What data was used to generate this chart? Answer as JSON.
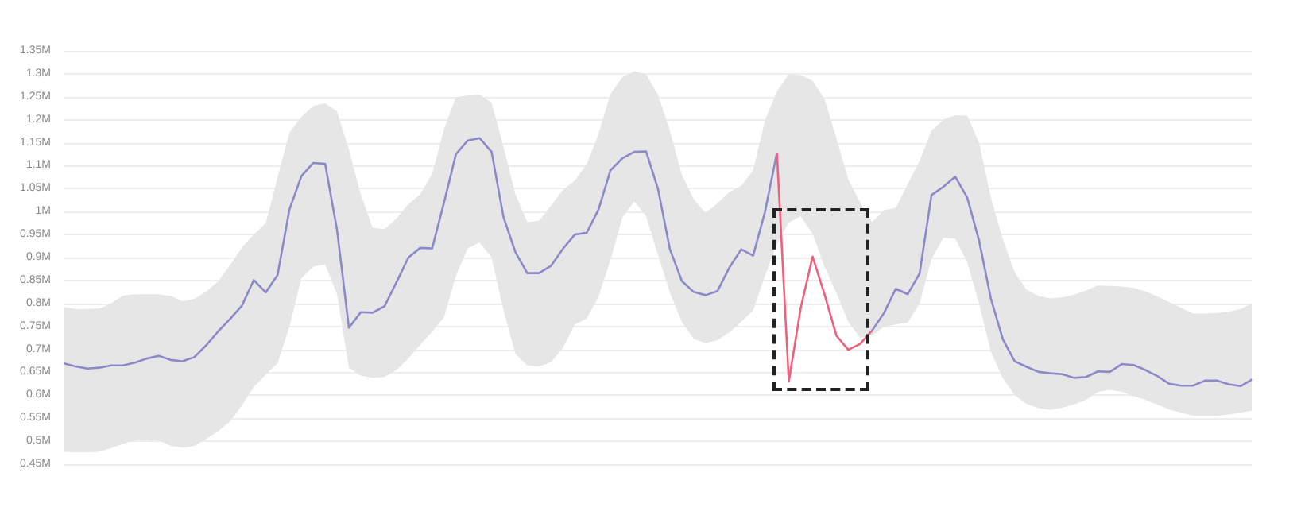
{
  "chart_data": {
    "type": "line",
    "categories": [
      null,
      null,
      null,
      null,
      null,
      null,
      null,
      null,
      null,
      null,
      null,
      null,
      null,
      null,
      null,
      null,
      null,
      null,
      null,
      null,
      null,
      null,
      null,
      null,
      null,
      null,
      null,
      null,
      null,
      null,
      null,
      null,
      null,
      null,
      null,
      null,
      null,
      null,
      null,
      null,
      null,
      null,
      null,
      null,
      null,
      null,
      null,
      null,
      null,
      null,
      null,
      null,
      null,
      null,
      null,
      null,
      null,
      null,
      null,
      null,
      null,
      null,
      null,
      null,
      null,
      null,
      null,
      null,
      null,
      null,
      null,
      null,
      null,
      null,
      null,
      null,
      null,
      null,
      null,
      null,
      null,
      null,
      null,
      null,
      null,
      null,
      null,
      null,
      null,
      null,
      null,
      null,
      null,
      null,
      null,
      null,
      null,
      null,
      null,
      null,
      null
    ],
    "series": [
      {
        "color": "#8c89c9",
        "values": [
          0.67,
          0.663,
          0.658,
          0.66,
          0.665,
          0.665,
          0.671,
          0.68,
          0.686,
          0.677,
          0.674,
          0.683,
          0.709,
          0.739,
          0.766,
          0.795,
          0.851,
          0.824,
          0.862,
          1.005,
          1.077,
          1.106,
          1.104,
          0.96,
          0.747,
          0.781,
          0.78,
          0.794,
          0.846,
          0.9,
          0.921,
          0.92,
          1.02,
          1.125,
          1.155,
          1.16,
          1.13,
          0.988,
          0.912,
          0.866,
          0.866,
          0.882,
          0.919,
          0.95,
          0.954,
          1.005,
          1.09,
          1.116,
          1.13,
          1.131,
          1.049,
          0.918,
          0.849,
          0.825,
          0.818,
          0.827,
          0.878,
          0.918,
          0.904,
          1.0,
          1.128,
          null,
          null,
          null,
          null,
          null,
          null,
          null,
          0.741,
          0.779,
          0.832,
          0.82,
          0.865,
          1.036,
          1.054,
          1.076,
          1.031,
          0.937,
          0.81,
          0.722,
          0.674,
          0.662,
          0.651,
          0.648,
          0.646,
          0.638,
          0.64,
          0.652,
          0.651,
          0.668,
          0.666,
          0.655,
          0.642,
          0.625,
          0.621,
          0.621,
          0.632,
          0.632,
          0.624,
          0.62,
          0.635
        ],
        "upper": [
          0.792,
          0.788,
          0.788,
          0.789,
          0.8,
          0.817,
          0.82,
          0.82,
          0.82,
          0.816,
          0.805,
          0.81,
          0.826,
          0.848,
          0.883,
          0.922,
          0.95,
          0.975,
          1.075,
          1.172,
          1.206,
          1.23,
          1.236,
          1.218,
          1.135,
          1.037,
          0.965,
          0.962,
          0.985,
          1.016,
          1.038,
          1.082,
          1.18,
          1.249,
          1.253,
          1.255,
          1.237,
          1.141,
          1.038,
          0.977,
          0.98,
          1.013,
          1.047,
          1.068,
          1.103,
          1.17,
          1.256,
          1.293,
          1.306,
          1.299,
          1.254,
          1.176,
          1.08,
          1.027,
          0.997,
          1.018,
          1.043,
          1.056,
          1.09,
          1.199,
          1.262,
          1.299,
          1.297,
          1.285,
          1.245,
          1.16,
          1.07,
          1.02,
          0.977,
          1.003,
          1.008,
          1.06,
          1.11,
          1.177,
          1.2,
          1.21,
          1.209,
          1.15,
          1.03,
          0.94,
          0.867,
          0.83,
          0.816,
          0.811,
          0.813,
          0.819,
          0.828,
          0.839,
          0.838,
          0.837,
          0.834,
          0.826,
          0.815,
          0.803,
          0.79,
          0.778,
          0.778,
          0.779,
          0.782,
          0.788,
          0.8
        ],
        "lower": [
          0.477,
          0.476,
          0.476,
          0.477,
          0.485,
          0.494,
          0.503,
          0.504,
          0.502,
          0.49,
          0.486,
          0.49,
          0.505,
          0.522,
          0.543,
          0.578,
          0.618,
          0.645,
          0.67,
          0.75,
          0.855,
          0.88,
          0.885,
          0.82,
          0.66,
          0.643,
          0.638,
          0.64,
          0.655,
          0.68,
          0.71,
          0.738,
          0.77,
          0.86,
          0.92,
          0.933,
          0.9,
          0.785,
          0.69,
          0.665,
          0.663,
          0.672,
          0.703,
          0.754,
          0.767,
          0.815,
          0.895,
          0.987,
          1.022,
          0.99,
          0.905,
          0.824,
          0.76,
          0.723,
          0.714,
          0.72,
          0.737,
          0.76,
          0.785,
          0.86,
          0.93,
          0.976,
          0.99,
          0.952,
          0.88,
          0.823,
          0.76,
          0.725,
          0.731,
          0.749,
          0.754,
          0.758,
          0.8,
          0.896,
          0.943,
          0.941,
          0.89,
          0.8,
          0.695,
          0.637,
          0.6,
          0.581,
          0.572,
          0.568,
          0.573,
          0.58,
          0.59,
          0.607,
          0.612,
          0.608,
          0.598,
          0.59,
          0.58,
          0.569,
          0.562,
          0.555,
          0.555,
          0.555,
          0.558,
          0.562,
          0.567
        ]
      },
      {
        "color": "#f0607a",
        "values": [
          null,
          null,
          null,
          null,
          null,
          null,
          null,
          null,
          null,
          null,
          null,
          null,
          null,
          null,
          null,
          null,
          null,
          null,
          null,
          null,
          null,
          null,
          null,
          null,
          null,
          null,
          null,
          null,
          null,
          null,
          null,
          null,
          null,
          null,
          null,
          null,
          null,
          null,
          null,
          null,
          null,
          null,
          null,
          null,
          null,
          null,
          null,
          null,
          null,
          null,
          null,
          null,
          null,
          null,
          null,
          null,
          null,
          null,
          null,
          null,
          1.128,
          0.63,
          0.79,
          0.902,
          0.82,
          0.73,
          0.699,
          0.712,
          0.741,
          null,
          null,
          null,
          null,
          null,
          null,
          null,
          null,
          null,
          null,
          null,
          null,
          null,
          null,
          null,
          null,
          null,
          null,
          null,
          null,
          null,
          null,
          null,
          null,
          null,
          null,
          null,
          null,
          null,
          null,
          null,
          null
        ]
      }
    ],
    "ylim": [
      0.45,
      1.35
    ],
    "yticks": [
      {
        "value": 0.45,
        "label": "0.45M"
      },
      {
        "value": 0.5,
        "label": "0.5M"
      },
      {
        "value": 0.55,
        "label": "0.55M"
      },
      {
        "value": 0.6,
        "label": "0.6M"
      },
      {
        "value": 0.65,
        "label": "0.65M"
      },
      {
        "value": 0.7,
        "label": "0.7M"
      },
      {
        "value": 0.75,
        "label": "0.75M"
      },
      {
        "value": 0.8,
        "label": "0.8M"
      },
      {
        "value": 0.85,
        "label": "0.85M"
      },
      {
        "value": 0.9,
        "label": "0.9M"
      },
      {
        "value": 0.95,
        "label": "0.95M"
      },
      {
        "value": 1,
        "label": "1M"
      },
      {
        "value": 1.05,
        "label": "1.05M"
      },
      {
        "value": 1.1,
        "label": "1.1M"
      },
      {
        "value": 1.15,
        "label": "1.15M"
      },
      {
        "value": 1.2,
        "label": "1.2M"
      },
      {
        "value": 1.25,
        "label": "1.25M"
      },
      {
        "value": 1.3,
        "label": "1.3M"
      },
      {
        "value": 1.35,
        "label": "1.35M"
      }
    ],
    "grid": "y",
    "tick_labels": "y",
    "line_style": "solid"
  }
}
